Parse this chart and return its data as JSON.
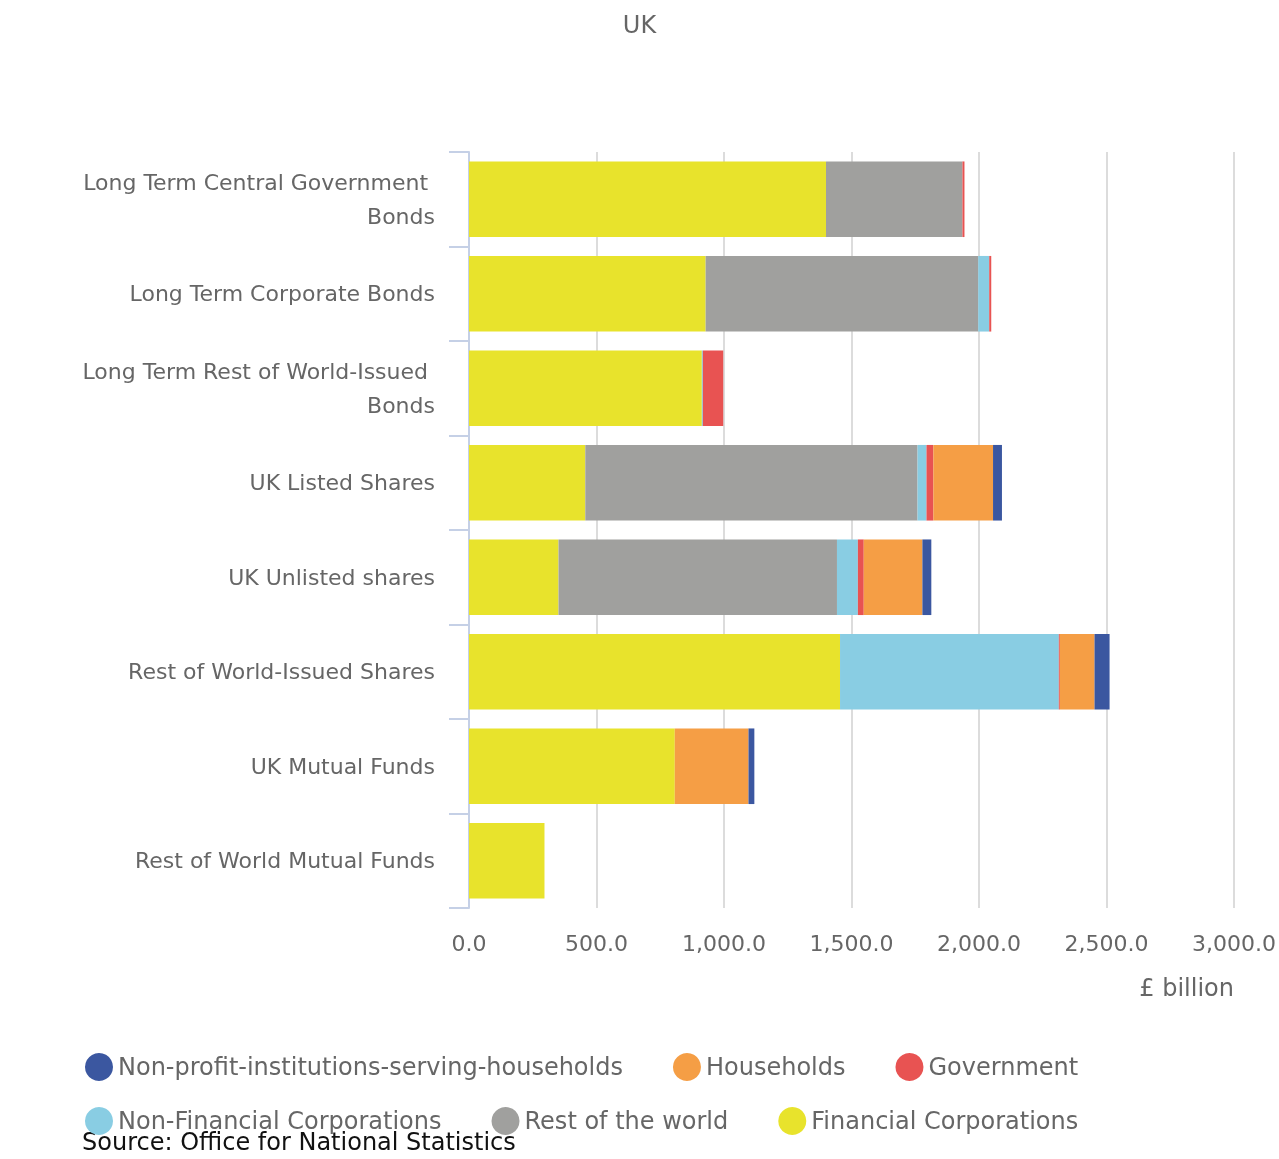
{
  "chart_data": {
    "type": "bar",
    "orientation": "horizontal",
    "stacked": true,
    "title": "UK",
    "xlabel": "£ billion",
    "categories": [
      "Long Term Central Government Bonds",
      "Long Term Corporate Bonds",
      "Long Term Rest of World-Issued Bonds",
      "UK Listed Shares",
      "UK Unlisted shares",
      "Rest of World-Issued Shares",
      "UK Mutual Funds",
      "Rest of World Mutual Funds"
    ],
    "series": [
      {
        "name": "Financial Corporations",
        "color": "#e8e32c",
        "values": [
          1400,
          928,
          913,
          456,
          351,
          1455,
          807,
          296
        ]
      },
      {
        "name": "Rest of the world",
        "color": "#a0a09e",
        "values": [
          535,
          1069,
          0,
          1303,
          1092,
          0,
          0,
          0
        ]
      },
      {
        "name": "Non-Financial Corporations",
        "color": "#89cde3",
        "values": [
          0,
          43,
          4,
          35,
          82,
          858,
          0,
          0
        ]
      },
      {
        "name": "Government",
        "color": "#e85352",
        "values": [
          8,
          8,
          80,
          27,
          23,
          4,
          0,
          0
        ]
      },
      {
        "name": "Households",
        "color": "#f59e45",
        "values": [
          0,
          0,
          0,
          234,
          230,
          136,
          289,
          0
        ]
      },
      {
        "name": "Non-profit-institutions-serving-households",
        "color": "#3b57a0",
        "values": [
          0,
          0,
          0,
          35,
          35,
          59,
          23,
          0
        ]
      }
    ],
    "xlim": [
      0,
      3000
    ],
    "xticks": [
      {
        "value": 0,
        "label": "0.0"
      },
      {
        "value": 500,
        "label": "500.0"
      },
      {
        "value": 1000,
        "label": "1,000.0"
      },
      {
        "value": 1500,
        "label": "1,500.0"
      },
      {
        "value": 2000,
        "label": "2,000.0"
      },
      {
        "value": 2500,
        "label": "2,500.0"
      },
      {
        "value": 3000,
        "label": "3,000.0"
      }
    ],
    "grid": "x",
    "legend": "bottom",
    "annotations": [
      "Source: Office for National Statistics"
    ]
  }
}
